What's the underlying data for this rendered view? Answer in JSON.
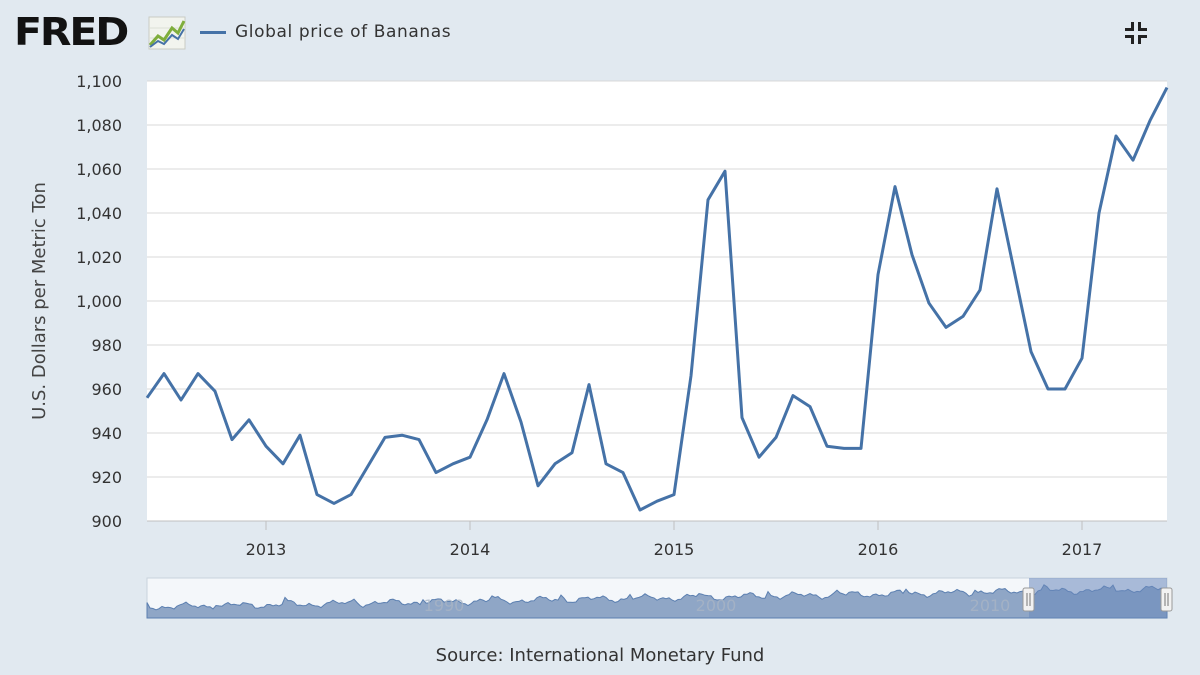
{
  "header": {
    "logo_text": "FRED",
    "legend_label": "Global price of Bananas",
    "collapse_icon": "collapse-arrows-icon"
  },
  "colors": {
    "series": "#4572a7",
    "background": "#e1e9f0",
    "plot_background": "#ffffff",
    "grid": "#d8d8d8",
    "navigator_fill": "#8fa6c6",
    "navigator_selection": "#8aa3cc"
  },
  "source": "Source: International Monetary Fund",
  "chart_data": {
    "type": "line",
    "title": "",
    "xlabel": "",
    "ylabel": "U.S. Dollars per Metric Ton",
    "ylim": [
      900,
      1100
    ],
    "yticks": [
      900,
      920,
      940,
      960,
      980,
      1000,
      1020,
      1040,
      1060,
      1080,
      1100
    ],
    "ytick_labels": [
      "900",
      "920",
      "940",
      "960",
      "980",
      "1,000",
      "1,020",
      "1,040",
      "1,060",
      "1,080",
      "1,100"
    ],
    "xlim": [
      "2012-06",
      "2017-06"
    ],
    "xticks": [
      2013,
      2014,
      2015,
      2016,
      2017
    ],
    "xtick_labels": [
      "2013",
      "2014",
      "2015",
      "2016",
      "2017"
    ],
    "grid": true,
    "legend": "top-left",
    "series": [
      {
        "name": "Global price of Bananas",
        "x": [
          "2012-06",
          "2012-07",
          "2012-08",
          "2012-09",
          "2012-10",
          "2012-11",
          "2012-12",
          "2013-01",
          "2013-02",
          "2013-03",
          "2013-04",
          "2013-05",
          "2013-06",
          "2013-07",
          "2013-08",
          "2013-09",
          "2013-10",
          "2013-11",
          "2013-12",
          "2014-01",
          "2014-02",
          "2014-03",
          "2014-04",
          "2014-05",
          "2014-06",
          "2014-07",
          "2014-08",
          "2014-09",
          "2014-10",
          "2014-11",
          "2014-12",
          "2015-01",
          "2015-02",
          "2015-03",
          "2015-04",
          "2015-05",
          "2015-06",
          "2015-07",
          "2015-08",
          "2015-09",
          "2015-10",
          "2015-11",
          "2015-12",
          "2016-01",
          "2016-02",
          "2016-03",
          "2016-04",
          "2016-05",
          "2016-06",
          "2016-07",
          "2016-08",
          "2016-09",
          "2016-10",
          "2016-11",
          "2016-12",
          "2017-01",
          "2017-02",
          "2017-03",
          "2017-04",
          "2017-05",
          "2017-06"
        ],
        "values": [
          956,
          967,
          955,
          967,
          959,
          937,
          946,
          934,
          926,
          939,
          912,
          908,
          912,
          925,
          938,
          939,
          937,
          922,
          926,
          929,
          946,
          967,
          945,
          916,
          926,
          931,
          962,
          926,
          922,
          905,
          909,
          912,
          966,
          1046,
          1059,
          947,
          929,
          938,
          957,
          952,
          934,
          933,
          933,
          1012,
          1052,
          1021,
          999,
          988,
          993,
          1005,
          1051,
          1014,
          977,
          960,
          960,
          974,
          1040,
          1075,
          1064,
          1082,
          1097
        ]
      }
    ],
    "navigator": {
      "xtick_labels": [
        "1990",
        "2000",
        "2010"
      ]
    }
  }
}
